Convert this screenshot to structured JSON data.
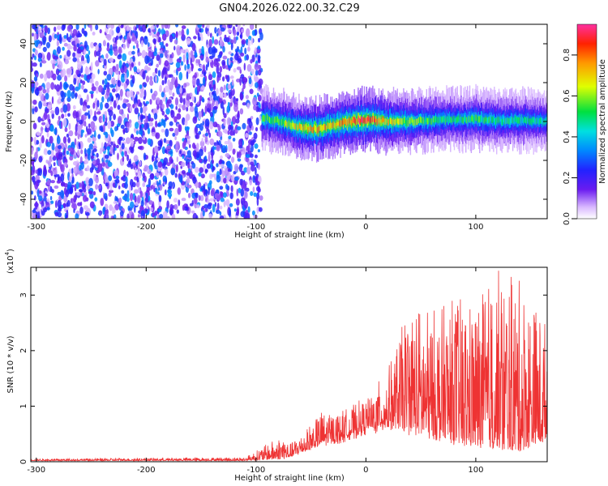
{
  "page_title": "GN04.2026.022.00.32.C29",
  "chart_data": [
    {
      "type": "heatmap",
      "title": "GN04.2026.022.00.32.C29",
      "xlabel": "Height of straight line (km)",
      "ylabel": "Frequency (Hz)",
      "xlim": [
        -305,
        165
      ],
      "ylim": [
        -50,
        50
      ],
      "x_ticks": [
        -300,
        -200,
        -100,
        0,
        100
      ],
      "y_ticks": [
        -40,
        -20,
        0,
        20,
        40
      ],
      "colorbar": {
        "label": "Normalized spectral amplitude",
        "range": [
          0,
          0.95
        ],
        "ticks": [
          0.0,
          0.2,
          0.4,
          0.6,
          0.8
        ]
      },
      "noise_region": {
        "x_range": [
          -305,
          -95
        ],
        "amplitude_range": [
          0.05,
          0.35
        ]
      },
      "signal_track": {
        "x": [
          -95,
          -80,
          -60,
          -45,
          -30,
          -15,
          0,
          20,
          40,
          60,
          80,
          100,
          120,
          140,
          165
        ],
        "freq": [
          2,
          0,
          -3,
          -4,
          -2,
          0,
          1,
          0,
          0,
          0.5,
          1,
          1.5,
          0.5,
          1,
          0
        ],
        "peak_amplitude": [
          0.55,
          0.6,
          0.7,
          0.8,
          0.75,
          0.85,
          0.9,
          0.7,
          0.6,
          0.55,
          0.5,
          0.55,
          0.5,
          0.5,
          0.45
        ]
      }
    },
    {
      "type": "line",
      "title": "",
      "xlabel": "Height of straight line (km)",
      "ylabel": "SNR (10 * v/v)",
      "multiplier_label": "(x10",
      "multiplier_exp": "4",
      "multiplier_close": ")",
      "xlim": [
        -305,
        165
      ],
      "ylim": [
        0,
        3.5
      ],
      "x_ticks": [
        -300,
        -200,
        -100,
        0,
        100
      ],
      "y_ticks": [
        0,
        1,
        2,
        3
      ],
      "color": "#ee3333",
      "envelope": {
        "x": [
          -305,
          -110,
          -75,
          -70,
          -40,
          -20,
          0,
          20,
          40,
          60,
          80,
          100,
          120,
          140,
          165
        ],
        "baseline": [
          0.02,
          0.02,
          0.05,
          0.08,
          0.3,
          0.4,
          0.55,
          0.65,
          0.55,
          0.45,
          0.35,
          0.3,
          0.25,
          0.2,
          0.4
        ],
        "peak": [
          0.05,
          0.08,
          0.5,
          0.3,
          0.9,
          0.9,
          1.1,
          1.6,
          2.9,
          2.7,
          3.0,
          2.9,
          3.5,
          3.3,
          2.5
        ]
      }
    }
  ]
}
